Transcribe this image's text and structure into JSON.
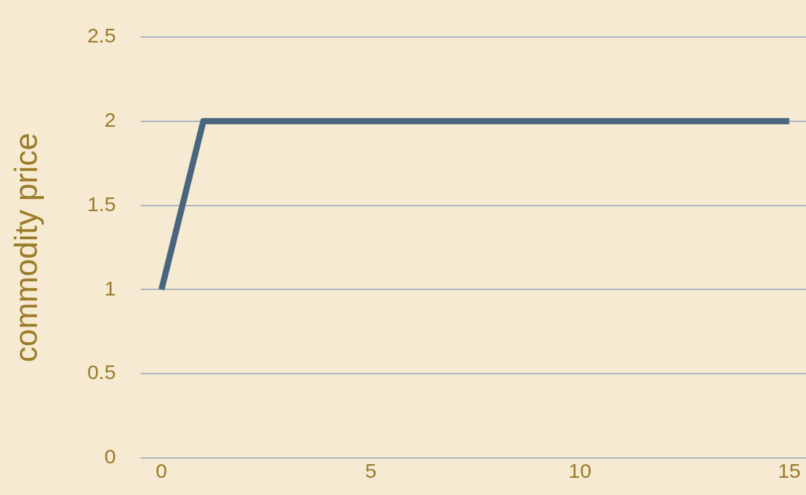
{
  "chart_data": {
    "type": "line",
    "ylabel": "commodity price",
    "x": [
      0,
      1,
      2,
      3,
      4,
      5,
      6,
      7,
      8,
      9,
      10,
      11,
      12,
      13,
      14,
      15
    ],
    "series": [
      {
        "color": "#4a6580",
        "values": [
          1,
          2,
          2,
          2,
          2,
          2,
          2,
          2,
          2,
          2,
          2,
          2,
          2,
          2,
          2,
          2
        ]
      }
    ],
    "xlim": [
      -0.5,
      15.4
    ],
    "xticks": [
      0,
      5,
      10,
      15
    ],
    "ylim": [
      0,
      2.5
    ],
    "yticks": [
      0,
      0.5,
      1,
      1.5,
      2,
      2.5
    ],
    "grid": "y",
    "marker": "none",
    "line_style": "solid"
  }
}
